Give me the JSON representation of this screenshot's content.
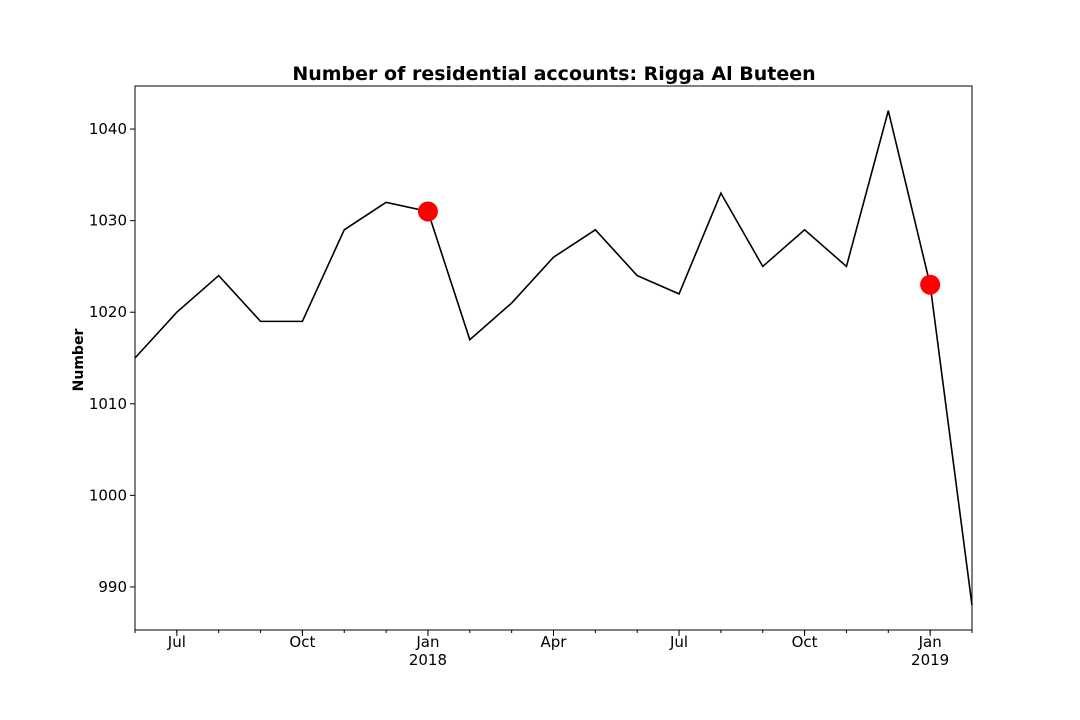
{
  "chart_data": {
    "type": "line",
    "title": "Number of residential accounts: Rigga Al Buteen",
    "xlabel": "",
    "ylabel": "Number",
    "x": [
      "2017-06",
      "2017-07",
      "2017-08",
      "2017-09",
      "2017-10",
      "2017-11",
      "2017-12",
      "2018-01",
      "2018-02",
      "2018-03",
      "2018-04",
      "2018-05",
      "2018-06",
      "2018-07",
      "2018-08",
      "2018-09",
      "2018-10",
      "2018-11",
      "2018-12",
      "2019-01",
      "2019-02"
    ],
    "series": [
      {
        "values": [
          1015,
          1020,
          1024,
          1019,
          1019,
          1029,
          1032,
          1031,
          1017,
          1021,
          1026,
          1029,
          1024,
          1022,
          1033,
          1025,
          1029,
          1025,
          1042,
          1023,
          988
        ],
        "color": "#000000"
      }
    ],
    "highlighted_points": [
      {
        "x": "2018-01",
        "y": 1031,
        "color": "#ff0000"
      },
      {
        "x": "2019-01",
        "y": 1023,
        "color": "#ff0000"
      }
    ],
    "xlim": [
      "2017-06",
      "2019-02"
    ],
    "ylim": [
      985.3,
      1044.7
    ],
    "yticks": [
      990,
      1000,
      1010,
      1020,
      1030,
      1040
    ],
    "xticks": [
      {
        "x": "2017-07",
        "label": "Jul",
        "sublabel": ""
      },
      {
        "x": "2017-10",
        "label": "Oct",
        "sublabel": ""
      },
      {
        "x": "2018-01",
        "label": "Jan",
        "sublabel": "2018"
      },
      {
        "x": "2018-04",
        "label": "Apr",
        "sublabel": ""
      },
      {
        "x": "2018-07",
        "label": "Jul",
        "sublabel": ""
      },
      {
        "x": "2018-10",
        "label": "Oct",
        "sublabel": ""
      },
      {
        "x": "2019-01",
        "label": "Jan",
        "sublabel": "2019"
      }
    ],
    "grid": false,
    "legend": "none"
  }
}
